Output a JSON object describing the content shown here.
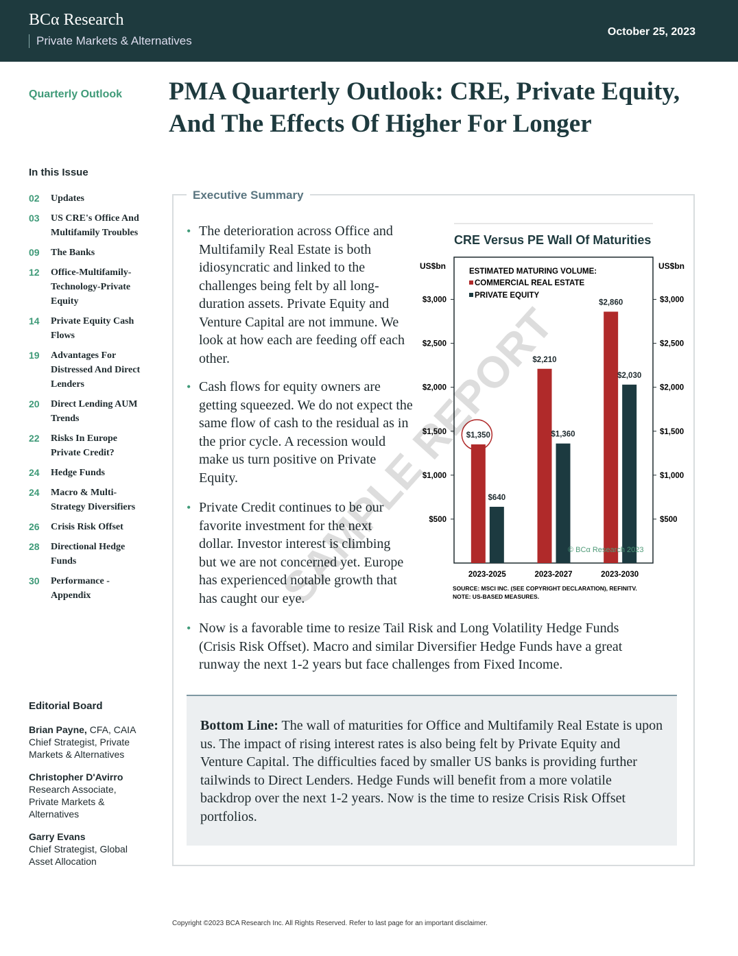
{
  "header": {
    "brand": "BCα Research",
    "division": "Private Markets & Alternatives",
    "date": "October 25, 2023"
  },
  "report_type": "Quarterly Outlook",
  "title": "PMA Quarterly Outlook: CRE, Private Equity, And The Effects Of Higher For Longer",
  "toc": {
    "heading": "In this Issue",
    "items": [
      {
        "page": "02",
        "label": "Updates"
      },
      {
        "page": "03",
        "label": "US CRE's Office And Multifamily Troubles"
      },
      {
        "page": "09",
        "label": "The Banks"
      },
      {
        "page": "12",
        "label": "Office-Multifamily-Technology-Private Equity"
      },
      {
        "page": "14",
        "label": "Private Equity Cash Flows"
      },
      {
        "page": "19",
        "label": "Advantages For Distressed And Direct Lenders"
      },
      {
        "page": "20",
        "label": "Direct Lending AUM Trends"
      },
      {
        "page": "22",
        "label": "Risks In Europe Private Credit?"
      },
      {
        "page": "24",
        "label": "Hedge Funds"
      },
      {
        "page": "24",
        "label": "Macro & Multi-Strategy Diversifiers"
      },
      {
        "page": "26",
        "label": "Crisis Risk Offset"
      },
      {
        "page": "28",
        "label": "Directional Hedge Funds"
      },
      {
        "page": "30",
        "label": "Performance - Appendix"
      }
    ]
  },
  "editorial_board": {
    "heading": "Editorial Board",
    "members": [
      {
        "name": "Brian Payne,",
        "credentials": "CFA, CAIA",
        "role": "Chief Strategist, Private Markets & Alternatives"
      },
      {
        "name": "Christopher D'Avirro",
        "role": "Research Associate, Private Markets & Alternatives"
      },
      {
        "name": "Garry Evans",
        "role": "Chief Strategist, Global Asset Allocation"
      }
    ]
  },
  "summary": {
    "heading": "Executive Summary",
    "bullets": [
      "The deterioration across Office and Multifamily Real Estate is both idiosyncratic and linked to the challenges being felt by all long-duration assets. Private Equity and Venture Capital are not immune. We look at how each are feeding off each other.",
      "Cash flows for equity owners are getting squeezed. We do not expect the same flow of cash to the residual as in the prior cycle. A recession would make us turn positive on Private Equity.",
      "Private Credit continues to be our favorite investment for the next dollar. Investor interest is climbing but we are not concerned yet. Europe has experienced notable growth that has caught our eye.",
      "Now is a favorable time to resize Tail Risk and Long Volatility Hedge Funds (Crisis Risk Offset). Macro and similar Diversifier Hedge Funds have a great runway the next 1-2 years but face challenges from Fixed Income."
    ],
    "bottom_line": {
      "label": "Bottom Line:",
      "text": "The wall of maturities for Office and Multifamily Real Estate is upon us. The impact of rising interest rates is also being felt by Private Equity and Venture Capital. The difficulties faced by smaller US banks is providing further tailwinds to Direct Lenders. Hedge Funds will benefit from a more volatile backdrop over the next 1-2 years. Now is the time to resize Crisis Risk Offset portfolios."
    }
  },
  "chart_data": {
    "type": "bar",
    "title": "CRE Versus PE Wall Of Maturities",
    "y_label": "US$bn",
    "y2_label": "US$bn",
    "legend_title": "ESTIMATED MATURING VOLUME:",
    "categories": [
      "2023-2025",
      "2023-2027",
      "2023-2030"
    ],
    "series": [
      {
        "name": "COMMERCIAL REAL ESTATE",
        "color": "#b02a2a",
        "values": [
          1350,
          2210,
          2860
        ],
        "value_labels": [
          "$1,350",
          "$2,210",
          "$2,860"
        ]
      },
      {
        "name": "PRIVATE EQUITY",
        "color": "#1c3a40",
        "values": [
          640,
          1360,
          2030
        ],
        "value_labels": [
          "$640",
          "$1,360",
          "$2,030"
        ]
      }
    ],
    "ylim": [
      0,
      3480
    ],
    "yticks": [
      {
        "value": 500,
        "label": "$500"
      },
      {
        "value": 1000,
        "label": "$1,000"
      },
      {
        "value": 1500,
        "label": "$1,500"
      },
      {
        "value": 2000,
        "label": "$2,000"
      },
      {
        "value": 2500,
        "label": "$2,500"
      },
      {
        "value": 3000,
        "label": "$3,000"
      }
    ],
    "y2lim": [
      0,
      3480
    ],
    "y2ticks": [
      {
        "value": 500,
        "label": "$500"
      },
      {
        "value": 1000,
        "label": "$1,000"
      },
      {
        "value": 1500,
        "label": "$1,500"
      },
      {
        "value": 2000,
        "label": "$2,000"
      },
      {
        "value": 2500,
        "label": "$2,500"
      },
      {
        "value": 3000,
        "label": "$3,000"
      }
    ],
    "copyright": "© BCα Research 2023",
    "source": "SOURCE: MSCI INC. (SEE COPYRIGHT DECLARATION), REFINITV.",
    "note": "NOTE: US-BASED MEASURES."
  },
  "watermark": "SAMPLE REPORT",
  "footer": "Copyright ©2023 BCA Research Inc. All Rights Reserved. Refer to last page for an important disclaimer."
}
